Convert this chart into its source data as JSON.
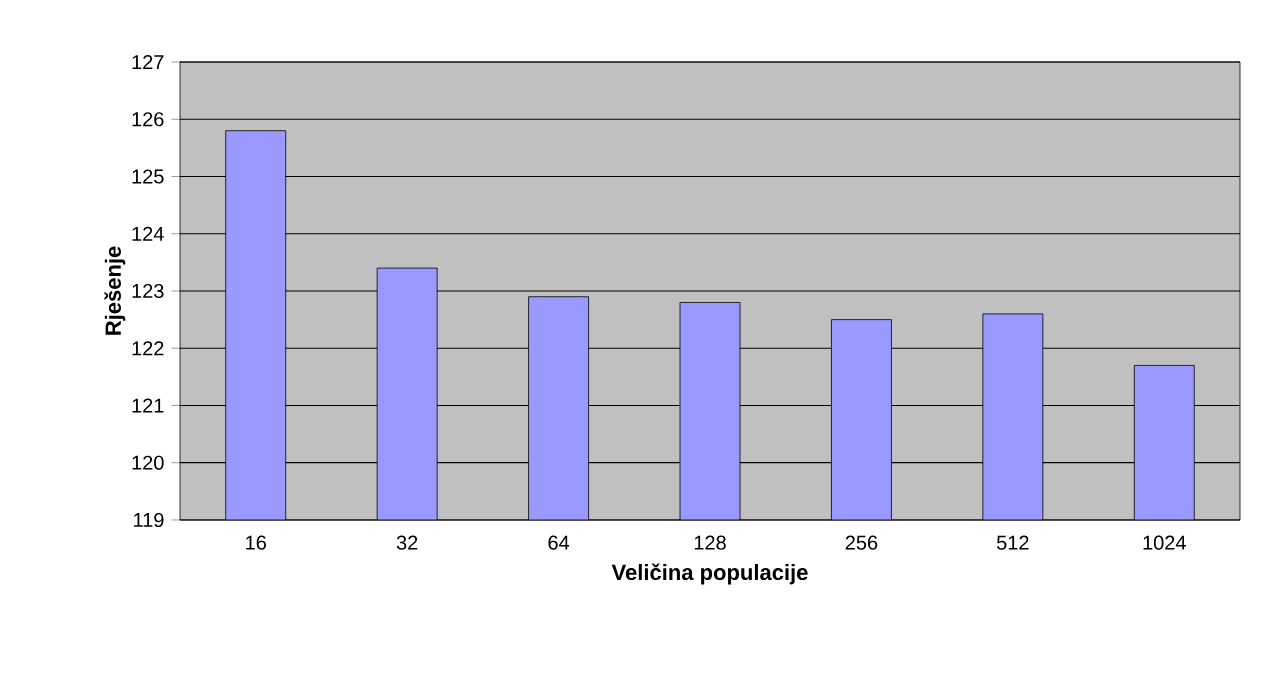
{
  "chart_data": {
    "type": "bar",
    "xlabel": "Veličina populacije",
    "ylabel": "Rješenje",
    "categories": [
      "16",
      "32",
      "64",
      "128",
      "256",
      "512",
      "1024"
    ],
    "values": [
      125.8,
      123.4,
      122.9,
      122.8,
      122.5,
      122.6,
      121.7
    ],
    "color": "#9999ff",
    "ylim": [
      119,
      127
    ],
    "yticks": [
      119,
      120,
      121,
      122,
      123,
      124,
      125,
      126,
      127
    ],
    "grid": "y"
  }
}
